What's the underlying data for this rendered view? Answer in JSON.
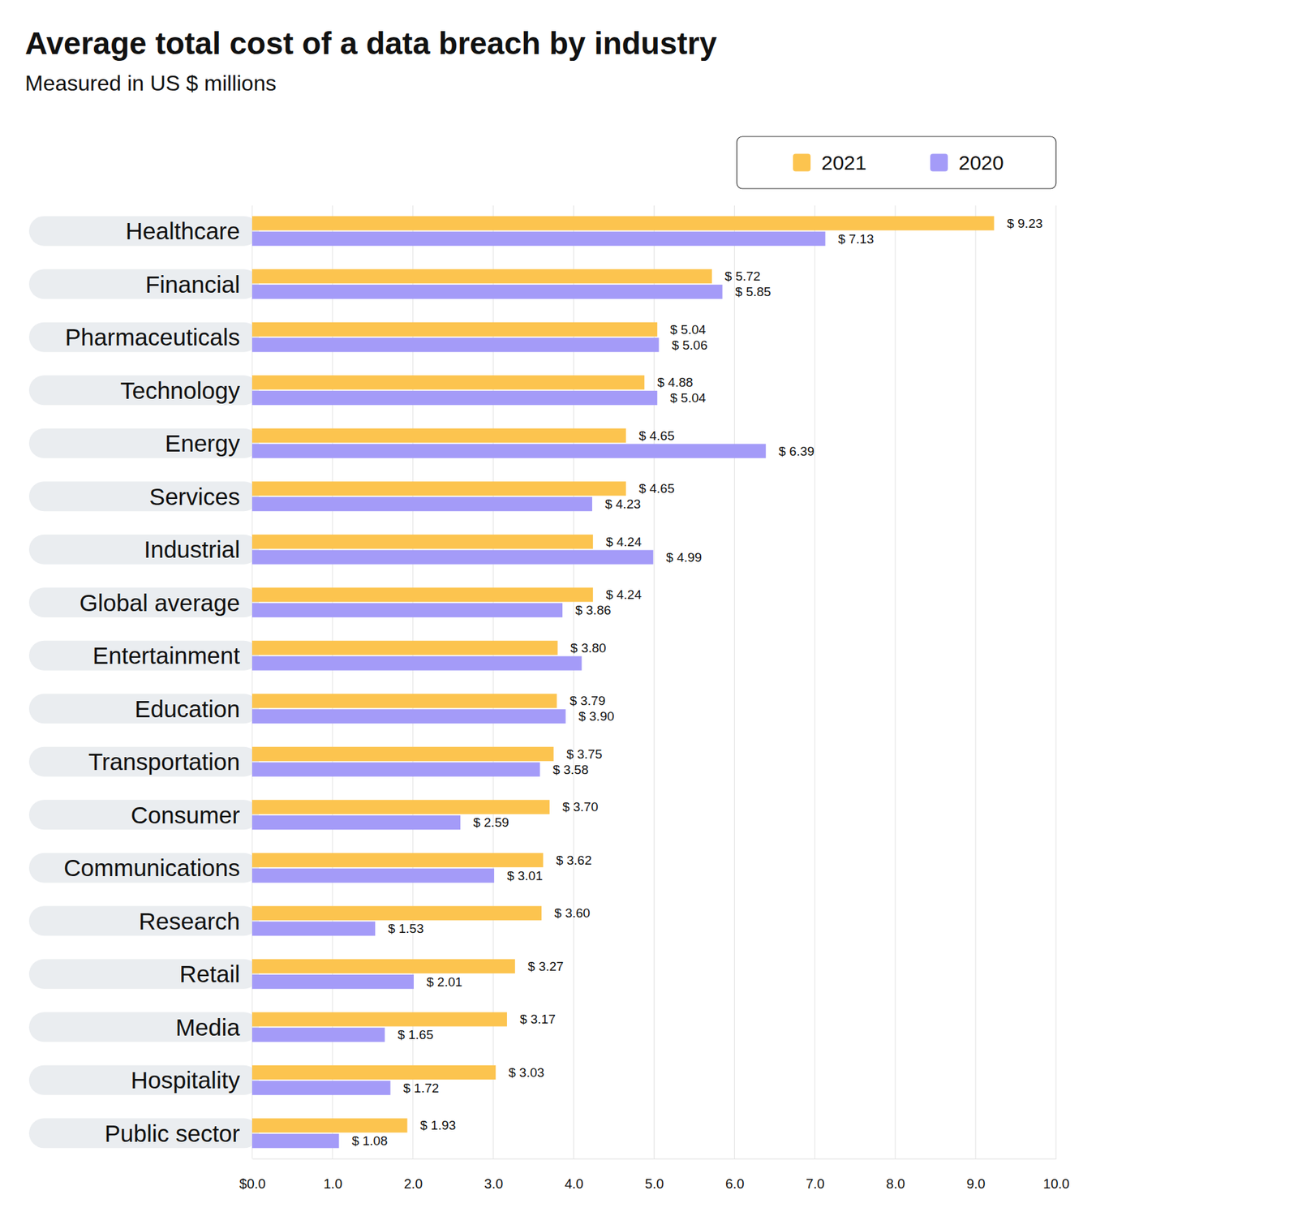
{
  "chart_data": {
    "type": "bar",
    "orientation": "horizontal",
    "title": "Average total cost of a data breach by industry",
    "subtitle": "Measured in US $ millions",
    "categories": [
      "Healthcare",
      "Financial",
      "Pharmaceuticals",
      "Technology",
      "Energy",
      "Services",
      "Industrial",
      "Global average",
      "Entertainment",
      "Education",
      "Transportation",
      "Consumer",
      "Communications",
      "Research",
      "Retail",
      "Media",
      "Hospitality",
      "Public sector"
    ],
    "series": [
      {
        "name": "2021",
        "color": "#fcc44f",
        "values": [
          9.23,
          5.72,
          5.04,
          4.88,
          4.65,
          4.65,
          4.24,
          4.24,
          3.8,
          3.79,
          3.75,
          3.7,
          3.62,
          3.6,
          3.27,
          3.17,
          3.03,
          1.93
        ],
        "value_labels": [
          "$ 9.23",
          "$ 5.72",
          "$ 5.04",
          "$ 4.88",
          "$ 4.65",
          "$ 4.65",
          "$ 4.24",
          "$ 4.24",
          "$ 3.80",
          "$ 3.79",
          "$ 3.75",
          "$ 3.70",
          "$ 3.62",
          "$ 3.60",
          "$ 3.27",
          "$ 3.17",
          "$ 3.03",
          "$ 1.93"
        ]
      },
      {
        "name": "2020",
        "color": "#a49bf8",
        "values": [
          7.13,
          5.85,
          5.06,
          5.04,
          6.39,
          4.23,
          4.99,
          3.86,
          4.1,
          3.9,
          3.58,
          2.59,
          3.01,
          1.53,
          2.01,
          1.65,
          1.72,
          1.08
        ],
        "value_labels": [
          "$ 7.13",
          "$ 5.85",
          "$ 5.06",
          "$ 5.04",
          "$ 6.39",
          "$ 4.23",
          "$ 4.99",
          "$ 3.86",
          null,
          "$ 3.90",
          "$ 3.58",
          "$ 2.59",
          "$ 3.01",
          "$ 1.53",
          "$ 2.01",
          "$ 1.65",
          "$ 1.72",
          "$ 1.08"
        ]
      }
    ],
    "xlim": [
      0,
      10
    ],
    "xticks": [
      {
        "value": 0,
        "label": "$0.0"
      },
      {
        "value": 1,
        "label": "1.0"
      },
      {
        "value": 2,
        "label": "2.0"
      },
      {
        "value": 3,
        "label": "3.0"
      },
      {
        "value": 4,
        "label": "4.0"
      },
      {
        "value": 5,
        "label": "5.0"
      },
      {
        "value": 6,
        "label": "6.0"
      },
      {
        "value": 7,
        "label": "7.0"
      },
      {
        "value": 8,
        "label": "8.0"
      },
      {
        "value": 9,
        "label": "9.0"
      },
      {
        "value": 10,
        "label": "10.0"
      }
    ],
    "grid": true,
    "legend": "top-right",
    "data_labels": true
  }
}
